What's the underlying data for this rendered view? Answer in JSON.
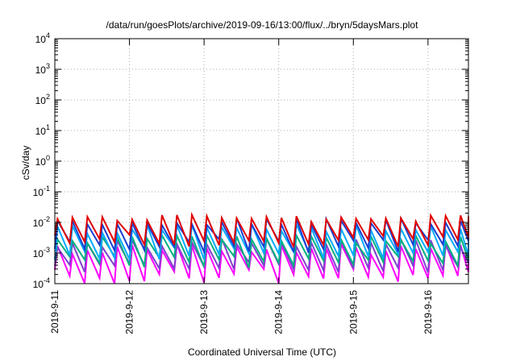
{
  "chart_data": {
    "type": "line",
    "title": "/data/run/goesPlots/archive/2019-09-16/13:00/flux/../bryn/5daysMars.plot",
    "xlabel": "Coordinated Universal Time (UTC)",
    "ylabel": "cSv/day",
    "yscale": "log",
    "ylim": [
      0.0001,
      10000
    ],
    "xlim": [
      "2019-09-11T00:00",
      "2019-09-16T13:00"
    ],
    "grid": true,
    "y_ticks": [
      {
        "base": "10",
        "exp": "4"
      },
      {
        "base": "10",
        "exp": "3"
      },
      {
        "base": "10",
        "exp": "2"
      },
      {
        "base": "10",
        "exp": "1"
      },
      {
        "base": "10",
        "exp": "0"
      },
      {
        "base": "10",
        "exp": "-1"
      },
      {
        "base": "10",
        "exp": "-2"
      },
      {
        "base": "10",
        "exp": "-3"
      },
      {
        "base": "10",
        "exp": "-4"
      }
    ],
    "x_ticks": [
      "2019-9-11",
      "2019-9-12",
      "2019-9-13",
      "2019-9-14",
      "2019-9-15",
      "2019-9-16"
    ],
    "series_colors": [
      "#e00000",
      "#1a3fd0",
      "#00aaff",
      "#00b080",
      "#8040d0",
      "#ff00ff"
    ],
    "series": [
      {
        "color": "#e00000",
        "peak_min": 0.01,
        "peak_max": 0.018,
        "trough_min": 0.0015,
        "trough_max": 0.004
      },
      {
        "color": "#1a3fd0",
        "peak_min": 0.008,
        "peak_max": 0.014,
        "trough_min": 0.001,
        "trough_max": 0.003
      },
      {
        "color": "#00aaff",
        "peak_min": 0.004,
        "peak_max": 0.009,
        "trough_min": 0.0006,
        "trough_max": 0.0015
      },
      {
        "color": "#00b080",
        "peak_min": 0.002,
        "peak_max": 0.004,
        "trough_min": 0.0003,
        "trough_max": 0.0008
      },
      {
        "color": "#8040d0",
        "peak_min": 0.0015,
        "peak_max": 0.003,
        "trough_min": 0.0002,
        "trough_max": 0.0005
      },
      {
        "color": "#ff00ff",
        "peak_min": 0.0008,
        "peak_max": 0.002,
        "trough_min": 0.0001,
        "trough_max": 0.0003
      }
    ]
  }
}
